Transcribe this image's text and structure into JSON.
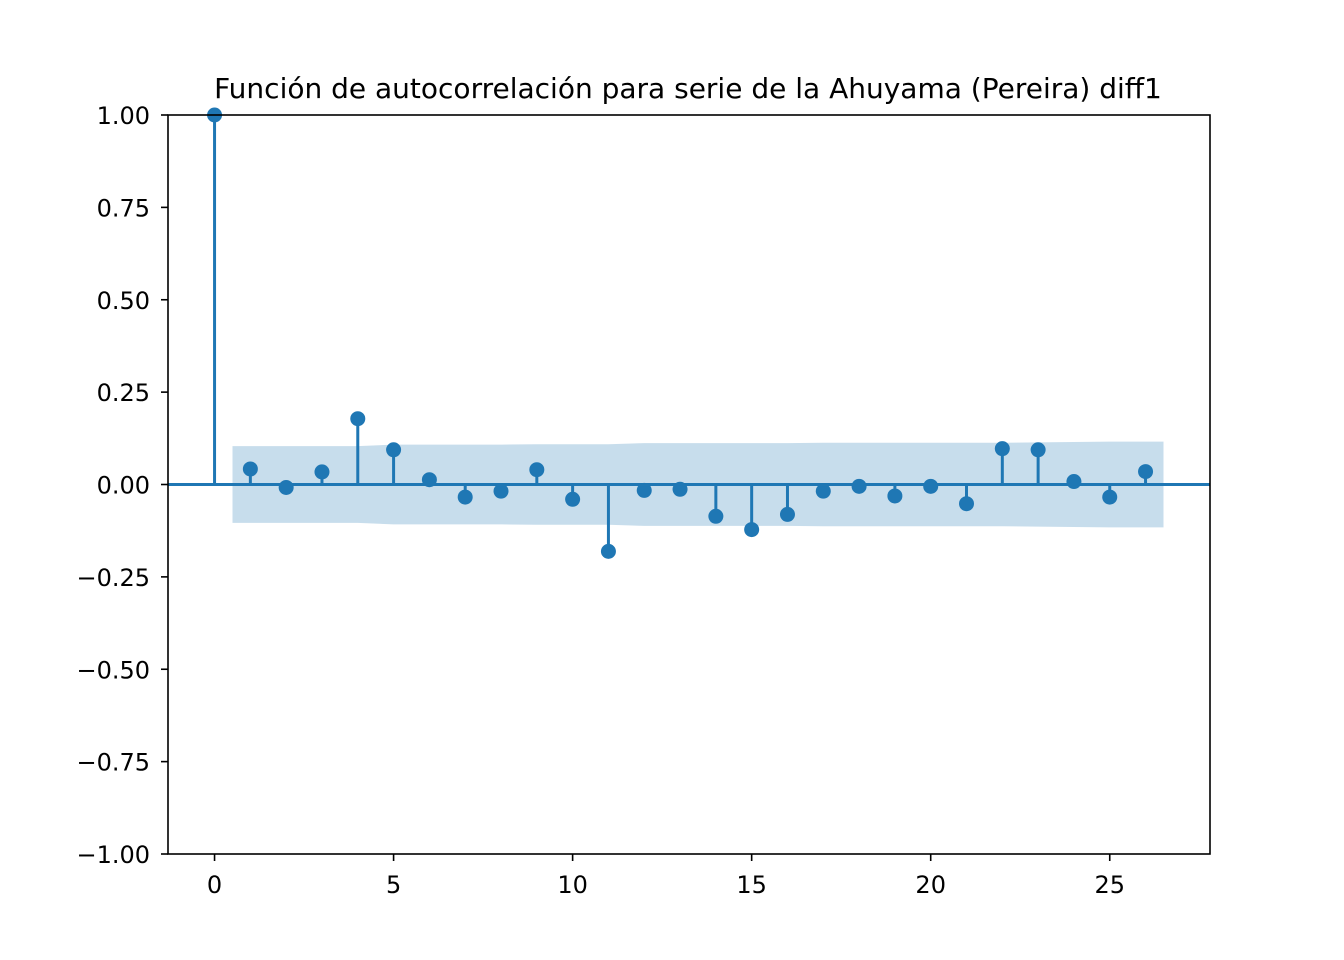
{
  "chart_data": {
    "type": "scatter",
    "subtype": "acf-stem",
    "title": "Función de autocorrelación para serie de la Ahuyama (Pereira) diff1",
    "xlabel": "",
    "ylabel": "",
    "xlim": [
      -1.3,
      27.8
    ],
    "ylim": [
      -1.0,
      1.0
    ],
    "x_ticks": [
      0,
      5,
      10,
      15,
      20,
      25
    ],
    "y_ticks": [
      -1.0,
      -0.75,
      -0.5,
      -0.25,
      0.0,
      0.25,
      0.5,
      0.75,
      1.0
    ],
    "x_tick_labels": [
      "0",
      "5",
      "10",
      "15",
      "20",
      "25"
    ],
    "y_tick_labels": [
      "−1.00",
      "−0.75",
      "−0.50",
      "−0.25",
      "0.00",
      "0.25",
      "0.50",
      "0.75",
      "1.00"
    ],
    "grid": false,
    "legend": "none",
    "lags": [
      0,
      1,
      2,
      3,
      4,
      5,
      6,
      7,
      8,
      9,
      10,
      11,
      12,
      13,
      14,
      15,
      16,
      17,
      18,
      19,
      20,
      21,
      22,
      23,
      24,
      25,
      26
    ],
    "acf": [
      1.0,
      0.042,
      -0.008,
      0.034,
      0.178,
      0.094,
      0.013,
      -0.034,
      -0.018,
      0.04,
      -0.04,
      -0.181,
      -0.016,
      -0.013,
      -0.086,
      -0.122,
      -0.081,
      -0.018,
      -0.005,
      -0.031,
      -0.005,
      -0.052,
      0.097,
      0.094,
      0.008,
      -0.034,
      0.035
    ],
    "confint_upper": [
      null,
      0.104,
      0.104,
      0.104,
      0.104,
      0.108,
      0.108,
      0.108,
      0.108,
      0.109,
      0.109,
      0.109,
      0.112,
      0.112,
      0.112,
      0.112,
      0.112,
      0.113,
      0.113,
      0.113,
      0.113,
      0.113,
      0.113,
      0.114,
      0.115,
      0.116,
      0.116
    ],
    "colors": {
      "stem": "#1f77b4",
      "band": "#1f77b4",
      "band_opacity": 0.25
    }
  }
}
